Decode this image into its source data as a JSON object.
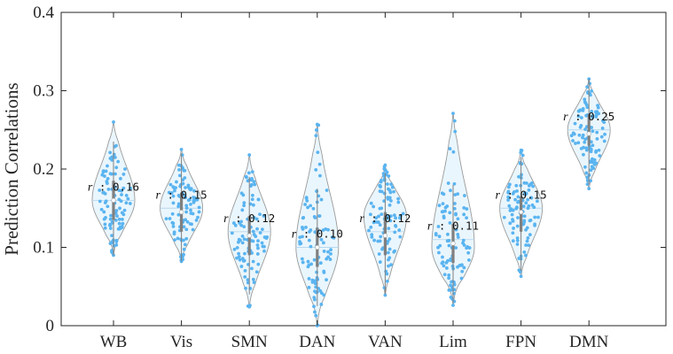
{
  "chart_data": {
    "type": "violin",
    "ylabel": "Prediction Correlations",
    "xlabel": "",
    "ylim": [
      0,
      0.4
    ],
    "yticks": [
      0,
      0.1,
      0.2,
      0.3,
      0.4
    ],
    "ytick_labels": [
      "0",
      "0.1",
      "0.2",
      "0.3",
      "0.4"
    ],
    "categories": [
      "WB",
      "Vis",
      "SMN",
      "DAN",
      "VAN",
      "Lim",
      "FPN",
      "DMN"
    ],
    "series": [
      {
        "name": "WB",
        "r_label": "r : 0.16",
        "mean": 0.16,
        "median": 0.16,
        "min": 0.09,
        "max": 0.26,
        "q1": 0.135,
        "q3": 0.185,
        "mode": 0.16
      },
      {
        "name": "Vis",
        "r_label": "r : 0.15",
        "mean": 0.15,
        "median": 0.145,
        "min": 0.082,
        "max": 0.225,
        "q1": 0.12,
        "q3": 0.17,
        "mode": 0.15
      },
      {
        "name": "SMN",
        "r_label": "r : 0.12",
        "mean": 0.12,
        "median": 0.115,
        "min": 0.024,
        "max": 0.218,
        "q1": 0.09,
        "q3": 0.14,
        "mode": 0.12
      },
      {
        "name": "DAN",
        "r_label": "r : 0.10",
        "mean": 0.1,
        "median": 0.1,
        "min": 0.0,
        "max": 0.257,
        "q1": 0.075,
        "q3": 0.125,
        "mode": 0.1
      },
      {
        "name": "VAN",
        "r_label": "r : 0.12",
        "mean": 0.12,
        "median": 0.115,
        "min": 0.039,
        "max": 0.205,
        "q1": 0.09,
        "q3": 0.145,
        "mode": 0.14
      },
      {
        "name": "Lim",
        "r_label": "r : 0.11",
        "mean": 0.11,
        "median": 0.105,
        "min": 0.026,
        "max": 0.271,
        "q1": 0.08,
        "q3": 0.13,
        "mode": 0.1
      },
      {
        "name": "FPN",
        "r_label": "r : 0.15",
        "mean": 0.15,
        "median": 0.145,
        "min": 0.063,
        "max": 0.224,
        "q1": 0.12,
        "q3": 0.165,
        "mode": 0.15
      },
      {
        "name": "DMN",
        "r_label": "r : 0.25",
        "mean": 0.25,
        "median": 0.245,
        "min": 0.175,
        "max": 0.315,
        "q1": 0.23,
        "q3": 0.27,
        "mode": 0.25
      }
    ],
    "colors": {
      "points": "#5ab4f0",
      "violin_fill": "#eaf6fd",
      "violin_edge": "#9a9a9a",
      "box": "#808080",
      "median_marker": "#ffffff",
      "axis": "#262626"
    }
  }
}
